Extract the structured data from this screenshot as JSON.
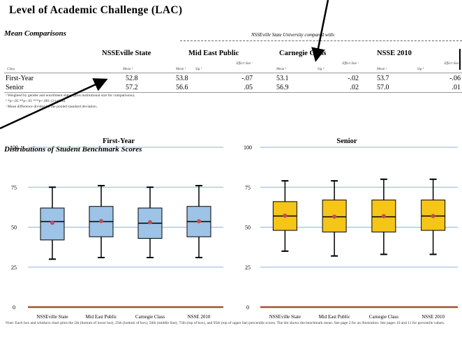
{
  "page": {
    "title": "Level of Academic Challenge (LAC)",
    "mean_comparisons_heading": "Mean Comparisons",
    "compared_with": "NSSEville State University compared with:",
    "distributions_heading": "Distributions of Student Benchmark Scores"
  },
  "table": {
    "columns": [
      {
        "label": "NSSEville State"
      },
      {
        "label": "Mid East Public"
      },
      {
        "label": "Carnegie Class"
      },
      {
        "label": "NSSE 2010"
      }
    ],
    "subheaders": {
      "class": "Class",
      "mean": "Mean ᵃ",
      "sig": "Sig ᵇ",
      "effect_size": "Effect Size ᶜ"
    },
    "rows": [
      {
        "class": "First-Year",
        "nsse_ville_mean": "52.8",
        "mep_mean": "53.8",
        "mep_effect": "-.07",
        "cc_mean": "53.1",
        "cc_effect": "-.02",
        "nsse_mean": "53.7",
        "nsse_effect": "-.06"
      },
      {
        "class": "Senior",
        "nsse_ville_mean": "57.2",
        "mep_mean": "56.6",
        "mep_effect": ".05",
        "cc_mean": "56.9",
        "cc_effect": ".02",
        "nsse_mean": "57.0",
        "nsse_effect": ".01"
      }
    ],
    "footnotes": [
      "ᵃ Weighted by gender and enrollment status (plus institutional size for comparisons).",
      "ᵇ *p<.05 **p<.01 ***p<.001 (2-tailed).",
      "ᶜ Mean difference divided by the pooled standard deviation."
    ]
  },
  "note": "Note: Each box and whiskers chart plots the 5th (bottom of lower bar), 25th (bottom of box), 50th (middle line), 75th (top of box), and 95th (top of upper bar) percentile scores. The dot shows the benchmark mean. See page 2 for an illustration. See pages 10 and 11 for percentile values.",
  "colors": {
    "first_year_box": "#9dc3e6",
    "senior_box": "#f5c518",
    "mean_dot": "#c0504d",
    "gridline": "#8db3e2",
    "baseline": "#a0522d"
  },
  "chart_data": [
    {
      "type": "boxplot",
      "title": "First-Year",
      "categories": [
        "NSSEville State",
        "Mid East Public",
        "Carnegie Class",
        "NSSE 2010"
      ],
      "ylim": [
        0,
        100
      ],
      "yticks": [
        0,
        25,
        50,
        75,
        100
      ],
      "grid": true,
      "series": [
        {
          "p5": 30,
          "p25": 42,
          "p50": 53.5,
          "p75": 62,
          "p95": 75,
          "mean": 52.8
        },
        {
          "p5": 31,
          "p25": 44,
          "p50": 53.5,
          "p75": 63,
          "p95": 76,
          "mean": 53.8
        },
        {
          "p5": 31,
          "p25": 43,
          "p50": 52.5,
          "p75": 62,
          "p95": 75,
          "mean": 53.1
        },
        {
          "p5": 31,
          "p25": 44,
          "p50": 53.5,
          "p75": 63,
          "p95": 76,
          "mean": 53.7
        }
      ]
    },
    {
      "type": "boxplot",
      "title": "Senior",
      "categories": [
        "NSSEville State",
        "Mid East Public",
        "Carnegie Class",
        "NSSE 2010"
      ],
      "ylim": [
        0,
        100
      ],
      "yticks": [
        0,
        25,
        50,
        75,
        100
      ],
      "grid": true,
      "series": [
        {
          "p5": 35,
          "p25": 48,
          "p50": 57,
          "p75": 66,
          "p95": 79,
          "mean": 57.2
        },
        {
          "p5": 32,
          "p25": 47,
          "p50": 56.5,
          "p75": 67,
          "p95": 79,
          "mean": 56.6
        },
        {
          "p5": 33,
          "p25": 47,
          "p50": 56.5,
          "p75": 67,
          "p95": 80,
          "mean": 56.9
        },
        {
          "p5": 33,
          "p25": 48,
          "p50": 57,
          "p75": 67,
          "p95": 80,
          "mean": 57.0
        }
      ]
    }
  ]
}
